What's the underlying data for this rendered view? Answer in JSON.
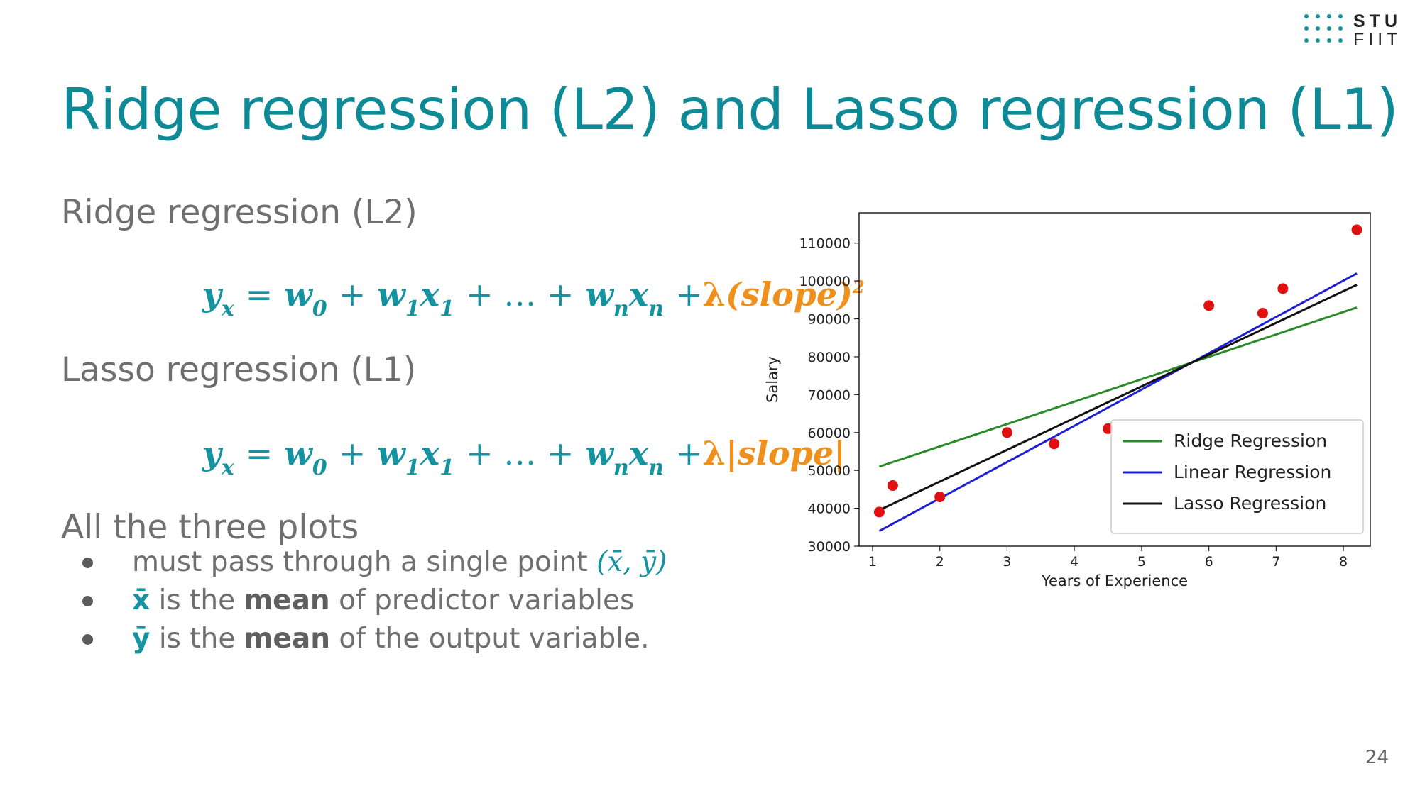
{
  "logo": {
    "line1": "STU",
    "line2": "FIIT"
  },
  "title": "Ridge regression (L2) and Lasso regression (L1)",
  "ridge": {
    "heading": "Ridge regression (L2)",
    "formula": {
      "y": "y",
      "y_sub": "x",
      "eq": "=",
      "w0": "w",
      "w0_sub": "0",
      "plus1": "+",
      "w1": "w",
      "w1_sub": "1",
      "x1": "x",
      "x1_sub": "1",
      "dots": "+ … +",
      "wn": "w",
      "wn_sub": "n",
      "xn": "x",
      "xn_sub": "n",
      "plus2": "+",
      "lambda": "λ",
      "penalty": "(slope)",
      "power": "2"
    }
  },
  "lasso": {
    "heading": "Lasso regression (L1)",
    "formula": {
      "y": "y",
      "y_sub": "x",
      "eq": "=",
      "w0": "w",
      "w0_sub": "0",
      "plus1": "+",
      "w1": "w",
      "w1_sub": "1",
      "x1": "x",
      "x1_sub": "1",
      "dots": "+ … +",
      "wn": "w",
      "wn_sub": "n",
      "xn": "x",
      "xn_sub": "n",
      "plus2": "+",
      "lambda": "λ",
      "penalty": "|slope|"
    }
  },
  "plots_heading": "All the three plots",
  "bullets": [
    {
      "text": "must pass through a single point ",
      "point": "(x̄, ȳ)"
    },
    {
      "symbol": "x̄",
      "pre": " is the ",
      "bold": "mean",
      "post": " of predictor variables"
    },
    {
      "symbol": "ȳ",
      "pre": " is the ",
      "bold": "mean",
      "post": " of the output variable."
    }
  ],
  "page_number": "24",
  "colors": {
    "title": "#0e8a96",
    "formula": "#1593a0",
    "penalty": "#f0901c",
    "points": "#e01010",
    "ridge": "#2a8a2a",
    "linear": "#1f1fd6",
    "lasso": "#111111"
  },
  "chart_data": {
    "type": "line",
    "xlabel": "Years of Experience",
    "ylabel": "Salary",
    "xlim": [
      0.8,
      8.4
    ],
    "ylim": [
      30000,
      118000
    ],
    "xticks": [
      1,
      2,
      3,
      4,
      5,
      6,
      7,
      8
    ],
    "yticks": [
      30000,
      40000,
      50000,
      60000,
      70000,
      80000,
      90000,
      100000,
      110000
    ],
    "scatter": {
      "x": [
        1.1,
        1.3,
        2.0,
        3.0,
        3.7,
        4.5,
        6.0,
        6.8,
        7.1,
        8.2
      ],
      "y": [
        39000,
        46000,
        43000,
        60000,
        57000,
        61000,
        93500,
        91500,
        98000,
        113500
      ]
    },
    "series": [
      {
        "name": "Ridge Regression",
        "x": [
          1.1,
          8.2
        ],
        "y": [
          51000,
          93000
        ],
        "color": "#2a8a2a"
      },
      {
        "name": "Linear Regression",
        "x": [
          1.1,
          8.2
        ],
        "y": [
          34000,
          102000
        ],
        "color": "#1f1fd6"
      },
      {
        "name": "Lasso Regression",
        "x": [
          1.1,
          8.2
        ],
        "y": [
          39500,
          99000
        ],
        "color": "#111111"
      }
    ],
    "legend_position": "lower-right",
    "grid": false
  }
}
